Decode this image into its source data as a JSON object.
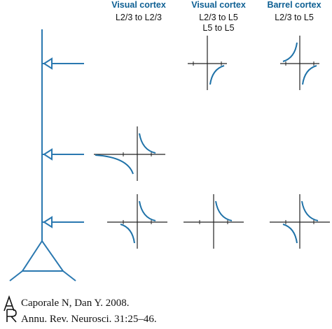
{
  "columns": [
    {
      "title": "Visual cortex",
      "lines": [
        "L2/3 to L2/3"
      ]
    },
    {
      "title": "Visual cortex",
      "lines": [
        "L2/3 to L5",
        "L5 to L5"
      ]
    },
    {
      "title": "Barrel cortex",
      "lines": [
        "L2/3 to L5"
      ]
    }
  ],
  "citation": {
    "logo_letters": "AR",
    "line1": "Caporale N, Dan Y. 2008.",
    "line2": "Annu. Rev. Neurosci. 31:25–46."
  },
  "colors": {
    "curve": "#1f72a8",
    "axes": "#222222",
    "neuron": "#2a78b0"
  }
}
